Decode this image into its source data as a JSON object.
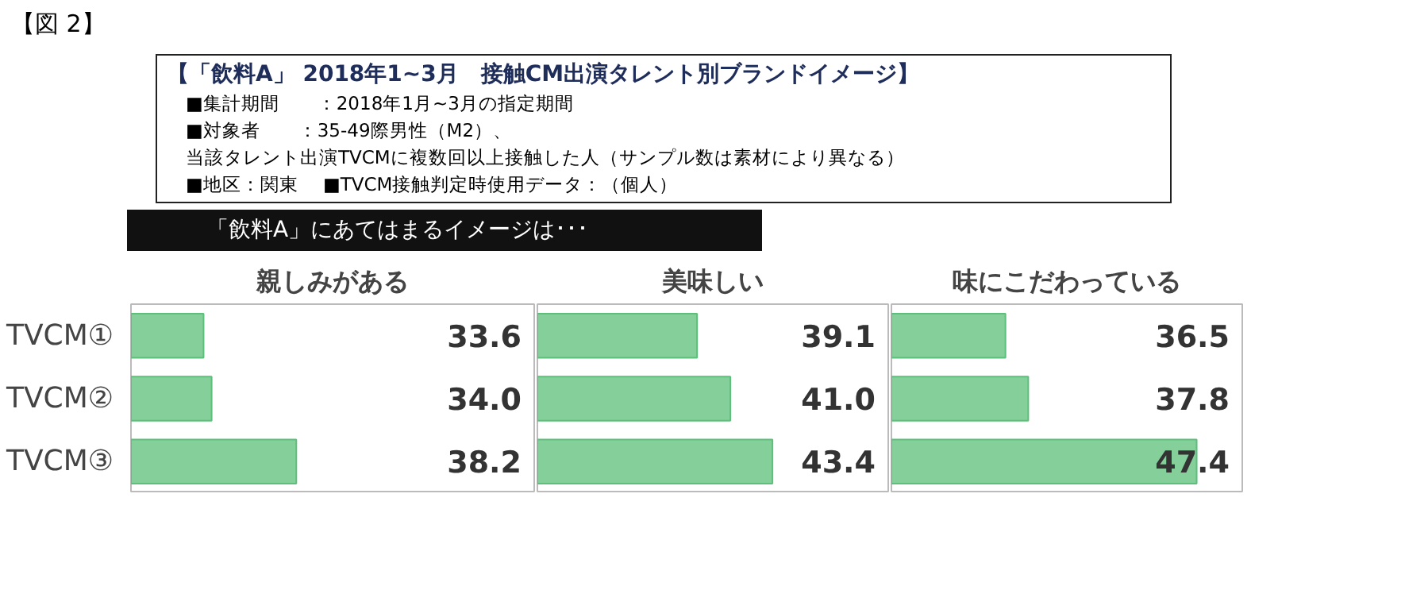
{
  "chart_data": [
    {
      "type": "bar",
      "orientation": "horizontal",
      "title": "親しみがある",
      "subtitle": "【「飲料A」 2018年1~3月　接触CM出演タレント別ブランドイメージ】",
      "annotations": [
        "【図 2】",
        "■集計期間　　：2018年1月~3月の指定期間",
        "■対象者　　：35-49際男性（M2）、",
        "当該タレント出演TVCMに複数回以上接触した人（サンプル数は素材により異なる）",
        "■地区：関東　 ■TVCM接触判定時使用データ：（個人）",
        "「飲料A」にあてはまるイメージは･･･"
      ],
      "categories": [
        "TVCM①",
        "TVCM②",
        "TVCM③"
      ],
      "values": [
        33.6,
        34.0,
        38.2
      ],
      "value_labels": [
        "33.6",
        "34.0",
        "38.2"
      ],
      "color": "#5cbf7a",
      "xlim": [
        30,
        50
      ],
      "tick_labels": "y"
    },
    {
      "type": "bar",
      "orientation": "horizontal",
      "title": "美味しい",
      "values": [
        39.1,
        41.0,
        43.4
      ],
      "value_labels": [
        "39.1",
        "41.0",
        "43.4"
      ],
      "color": "#5cbf7a",
      "xlim": [
        30,
        50
      ],
      "tick_labels": false
    },
    {
      "type": "bar",
      "orientation": "horizontal",
      "title": "味にこだわっている",
      "values": [
        36.5,
        37.8,
        47.4
      ],
      "value_labels": [
        "36.5",
        "37.8",
        "47.4"
      ],
      "color": "#5cbf7a",
      "xlim": [
        30,
        50
      ],
      "tick_labels": false
    }
  ]
}
